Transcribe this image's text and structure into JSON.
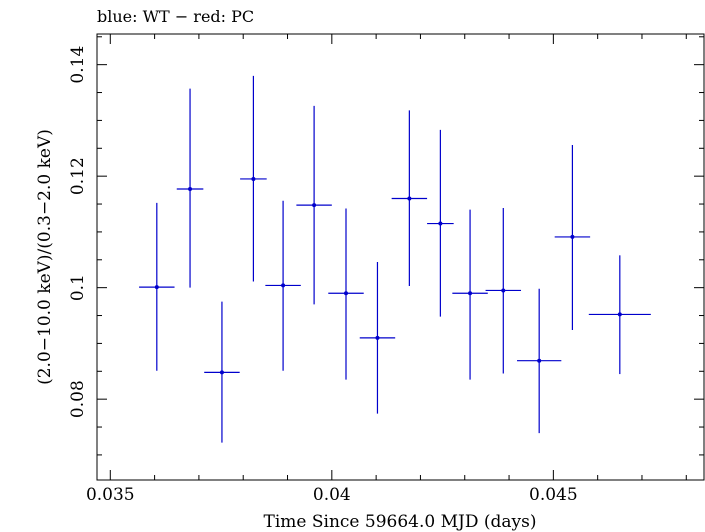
{
  "chart_data": {
    "type": "scatter",
    "title": "blue: WT − red: PC",
    "xlabel": "Time Since 59664.0 MJD (days)",
    "ylabel": "(2.0−10.0 keV)/(0.3−2.0 keV)",
    "xlim": [
      0.0347,
      0.0484
    ],
    "ylim": [
      0.0655,
      0.1455
    ],
    "xticks": [
      0.035,
      0.04,
      0.045
    ],
    "xtick_labels": [
      "0.035",
      "0.04",
      "0.045"
    ],
    "yticks": [
      0.08,
      0.1,
      0.12,
      0.14
    ],
    "ytick_labels": [
      "0.08",
      "0.1",
      "0.12",
      "0.14"
    ],
    "grid": false,
    "colors": {
      "series": "#0000cc",
      "axes": "#000000"
    },
    "series": [
      {
        "color": "#0000cc",
        "points": [
          {
            "x": 0.03605,
            "xerr": 0.0004,
            "y": 0.1001,
            "ylo": 0.0851,
            "yhi": 0.1152
          },
          {
            "x": 0.0368,
            "xerr": 0.0003,
            "y": 0.1177,
            "ylo": 0.1,
            "yhi": 0.1357
          },
          {
            "x": 0.03752,
            "xerr": 0.0004,
            "y": 0.0848,
            "ylo": 0.0722,
            "yhi": 0.0975
          },
          {
            "x": 0.03823,
            "xerr": 0.0003,
            "y": 0.1195,
            "ylo": 0.1011,
            "yhi": 0.138
          },
          {
            "x": 0.0389,
            "xerr": 0.0004,
            "y": 0.1004,
            "ylo": 0.0851,
            "yhi": 0.1156
          },
          {
            "x": 0.0396,
            "xerr": 0.0004,
            "y": 0.1148,
            "ylo": 0.097,
            "yhi": 0.1326
          },
          {
            "x": 0.04032,
            "xerr": 0.0004,
            "y": 0.099,
            "ylo": 0.0835,
            "yhi": 0.1142
          },
          {
            "x": 0.04103,
            "xerr": 0.0004,
            "y": 0.091,
            "ylo": 0.0774,
            "yhi": 0.1046
          },
          {
            "x": 0.04175,
            "xerr": 0.0004,
            "y": 0.116,
            "ylo": 0.1003,
            "yhi": 0.1318
          },
          {
            "x": 0.04245,
            "xerr": 0.0003,
            "y": 0.1115,
            "ylo": 0.0948,
            "yhi": 0.1283
          },
          {
            "x": 0.04312,
            "xerr": 0.0004,
            "y": 0.099,
            "ylo": 0.0835,
            "yhi": 0.114
          },
          {
            "x": 0.04387,
            "xerr": 0.0004,
            "y": 0.0995,
            "ylo": 0.0846,
            "yhi": 0.1143
          },
          {
            "x": 0.04468,
            "xerr": 0.0005,
            "y": 0.0869,
            "ylo": 0.0739,
            "yhi": 0.0998
          },
          {
            "x": 0.04543,
            "xerr": 0.0004,
            "y": 0.1091,
            "ylo": 0.0924,
            "yhi": 0.1256
          },
          {
            "x": 0.0465,
            "xerr": 0.0007,
            "y": 0.0952,
            "ylo": 0.0845,
            "yhi": 0.1058
          }
        ]
      }
    ]
  }
}
